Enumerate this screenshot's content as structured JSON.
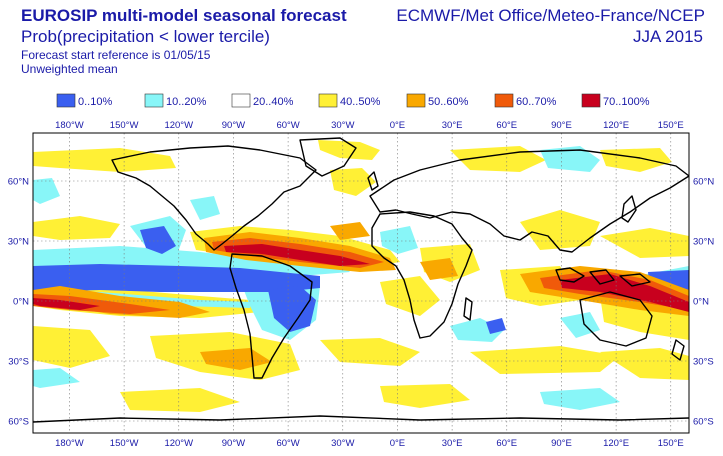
{
  "header": {
    "title": "EUROSIP multi-model seasonal forecast",
    "subtitle": "Prob(precipitation < lower tercile)",
    "start_reference": "Forecast start reference is 01/05/15",
    "mean_type": "Unweighted mean",
    "source": "ECMWF/Met Office/Meteo-France/NCEP",
    "season": "JJA 2015"
  },
  "legend": [
    {
      "label": "0..10%",
      "color": "#3a5ff0"
    },
    {
      "label": "10..20%",
      "color": "#88f6f8"
    },
    {
      "label": "20..40%",
      "color": "#ffffff"
    },
    {
      "label": "40..50%",
      "color": "#fff035"
    },
    {
      "label": "50..60%",
      "color": "#f9a800"
    },
    {
      "label": "60..70%",
      "color": "#f05a0a"
    },
    {
      "label": "70..100%",
      "color": "#c8001e"
    }
  ],
  "axes": {
    "lon_labels": [
      "180°W",
      "150°W",
      "120°W",
      "90°W",
      "60°W",
      "30°W",
      "0°E",
      "30°E",
      "60°E",
      "90°E",
      "120°E",
      "150°E"
    ],
    "lat_labels": [
      "60°N",
      "30°N",
      "0°N",
      "30°S",
      "60°S"
    ]
  },
  "colors": {
    "text": "#1a1aa8",
    "coast": "#000000",
    "grid": "#7a7a7a"
  }
}
